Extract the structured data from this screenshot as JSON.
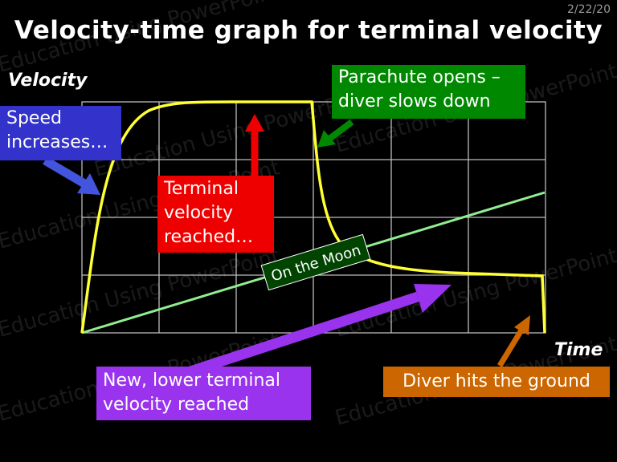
{
  "header": {
    "date": "2/22/20",
    "title": "Velocity-time graph for terminal velocity"
  },
  "axes": {
    "y_label": "Velocity",
    "x_label": "Time"
  },
  "callouts": {
    "speed_increases": [
      "Speed",
      "increases…"
    ],
    "terminal_reached": [
      "Terminal",
      "velocity",
      "reached…"
    ],
    "parachute_opens": [
      "Parachute opens –",
      "diver slows down"
    ],
    "on_the_moon": "On the Moon",
    "lower_terminal": [
      "New, lower terminal",
      "velocity reached"
    ],
    "hits_ground": "Diver hits the ground"
  },
  "watermark": "Education Using PowerPoint",
  "colors": {
    "background": "#000000",
    "grid": "#bdbdbd",
    "curve": "#ffff33",
    "moon_line": "#90ee90",
    "blue_box": "#3333cc",
    "blue_arrow": "#4455dd",
    "red_box": "#ee0000",
    "green_box": "#008800",
    "moon_label_bg": "#004400",
    "purple": "#9933ee",
    "orange": "#cc6600"
  }
}
